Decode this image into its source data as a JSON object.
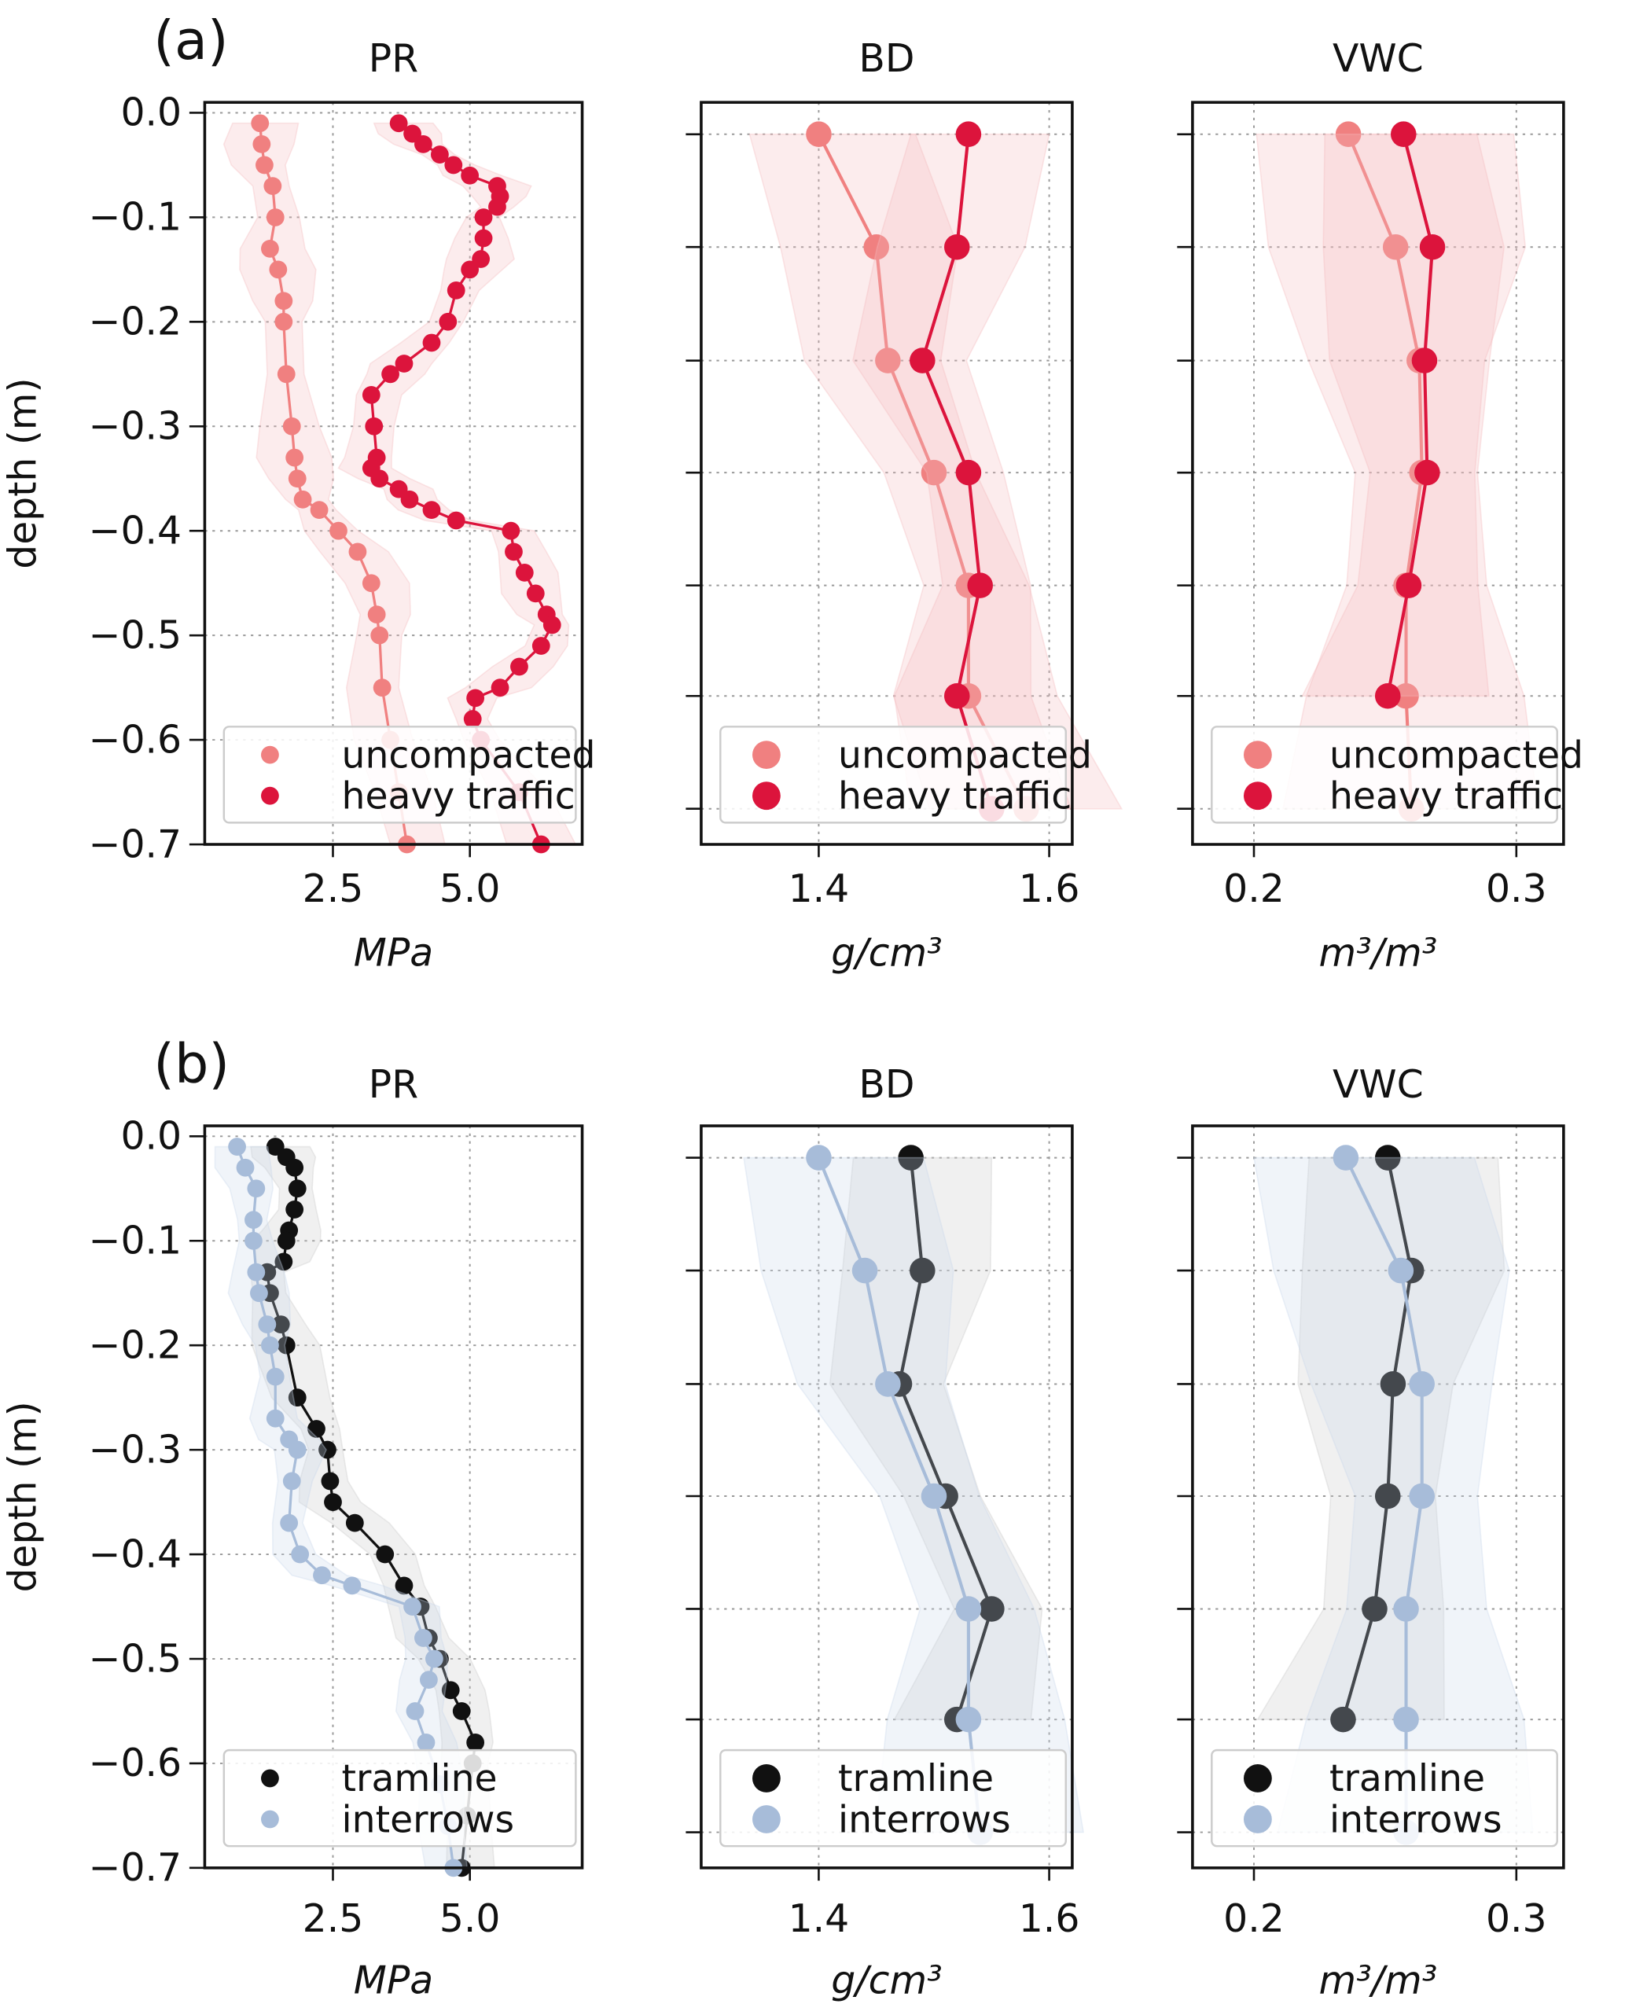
{
  "figure": {
    "rows": [
      {
        "label": "(a)",
        "legend": [
          "uncompacted",
          "heavy traffic"
        ]
      },
      {
        "label": "(b)",
        "legend": [
          "tramline",
          "interrows"
        ]
      }
    ]
  },
  "colors": {
    "uncompacted": "#F08080",
    "heavy_traffic": "#DC143C",
    "tramline": "#111111",
    "interrows": "#A7BCD9",
    "band_red": "#F4B9BE",
    "band_grey": "#C8C8C8",
    "band_blue": "#C9D6EA"
  },
  "chart_data": [
    {
      "id": "a-PR",
      "row": 0,
      "col": 0,
      "type": "line",
      "title": "PR",
      "xlabel": "MPa",
      "ylabel": "depth (m)",
      "xticks": [
        2.5,
        5.0
      ],
      "xtick_labels": [
        "2.5",
        "5.0"
      ],
      "yticks": [
        0.0,
        -0.1,
        -0.2,
        -0.3,
        -0.4,
        -0.5,
        -0.6,
        -0.7
      ],
      "ytick_labels": [
        "0.0",
        "−0.1",
        "−0.2",
        "−0.3",
        "−0.4",
        "−0.5",
        "−0.6",
        "−0.7"
      ],
      "xlim": [
        0.16,
        7.05
      ],
      "ylim": [
        -0.7,
        0.01
      ],
      "grid": true,
      "legend_loc": "lower-center",
      "series": [
        {
          "name": "uncompacted",
          "color_key": "uncompacted",
          "marker_size": "small",
          "band": 0.5,
          "depth": [
            -0.01,
            -0.03,
            -0.05,
            -0.07,
            -0.1,
            -0.13,
            -0.15,
            -0.18,
            -0.2,
            -0.25,
            -0.3,
            -0.33,
            -0.35,
            -0.37,
            -0.38,
            -0.4,
            -0.42,
            -0.45,
            -0.48,
            -0.5,
            -0.55,
            -0.6,
            -0.65,
            -0.7
          ],
          "value": [
            1.17,
            1.2,
            1.25,
            1.4,
            1.45,
            1.35,
            1.5,
            1.6,
            1.6,
            1.65,
            1.75,
            1.8,
            1.85,
            1.95,
            2.25,
            2.6,
            2.95,
            3.2,
            3.3,
            3.35,
            3.4,
            3.55,
            3.7,
            3.85
          ]
        },
        {
          "name": "heavy traffic",
          "color_key": "heavy_traffic",
          "marker_size": "small",
          "band": 0.45,
          "depth": [
            -0.01,
            -0.02,
            -0.03,
            -0.04,
            -0.05,
            -0.06,
            -0.07,
            -0.08,
            -0.09,
            -0.1,
            -0.12,
            -0.14,
            -0.15,
            -0.17,
            -0.2,
            -0.22,
            -0.24,
            -0.25,
            -0.27,
            -0.3,
            -0.33,
            -0.34,
            -0.35,
            -0.36,
            -0.37,
            -0.38,
            -0.39,
            -0.4,
            -0.42,
            -0.44,
            -0.46,
            -0.48,
            -0.49,
            -0.51,
            -0.53,
            -0.55,
            -0.56,
            -0.58,
            -0.6,
            -0.65,
            -0.7
          ],
          "value": [
            3.7,
            3.95,
            4.15,
            4.45,
            4.7,
            5.0,
            5.5,
            5.55,
            5.5,
            5.25,
            5.25,
            5.2,
            5.0,
            4.75,
            4.6,
            4.3,
            3.8,
            3.55,
            3.2,
            3.25,
            3.3,
            3.2,
            3.35,
            3.7,
            3.9,
            4.3,
            4.75,
            5.75,
            5.8,
            6.0,
            6.2,
            6.4,
            6.5,
            6.3,
            5.9,
            5.55,
            5.1,
            5.05,
            5.2,
            5.9,
            6.3
          ]
        }
      ]
    },
    {
      "id": "a-BD",
      "row": 0,
      "col": 1,
      "type": "line",
      "title": "BD",
      "xlabel": "g/cm³",
      "xticks": [
        1.4,
        1.6
      ],
      "xtick_labels": [
        "1.4",
        "1.6"
      ],
      "ylevels": 7,
      "xlim": [
        1.298,
        1.62
      ],
      "grid": true,
      "legend_loc": "lower-center",
      "series": [
        {
          "name": "uncompacted",
          "color_key": "uncompacted",
          "marker_size": "large",
          "band": 0.06,
          "value": [
            1.4,
            1.45,
            1.46,
            1.5,
            1.53,
            1.53,
            1.58
          ]
        },
        {
          "name": "heavy traffic",
          "color_key": "heavy_traffic",
          "marker_size": "large",
          "band": 0.05,
          "value": [
            1.53,
            1.52,
            1.49,
            1.53,
            1.54,
            1.52,
            1.55
          ]
        }
      ]
    },
    {
      "id": "a-VWC",
      "row": 0,
      "col": 2,
      "type": "line",
      "title": "VWC",
      "xlabel": "m³/m³",
      "xticks": [
        0.2,
        0.3
      ],
      "xtick_labels": [
        "0.2",
        "0.3"
      ],
      "ylevels": 7,
      "xlim": [
        0.1766,
        0.318
      ],
      "grid": true,
      "legend_loc": "lower-center",
      "series": [
        {
          "name": "uncompacted",
          "color_key": "uncompacted",
          "marker_size": "large",
          "band": 0.035,
          "value": [
            0.236,
            0.254,
            0.263,
            0.264,
            0.258,
            0.258,
            0.26
          ]
        },
        {
          "name": "heavy traffic",
          "color_key": "heavy_traffic",
          "marker_size": "large",
          "band": 0.03,
          "value": [
            0.257,
            0.268,
            0.265,
            0.266,
            0.259,
            0.251
          ]
        }
      ]
    },
    {
      "id": "b-PR",
      "row": 1,
      "col": 0,
      "type": "line",
      "title": "PR",
      "xlabel": "MPa",
      "ylabel": "depth (m)",
      "xticks": [
        2.5,
        5.0
      ],
      "xtick_labels": [
        "2.5",
        "5.0"
      ],
      "yticks": [
        0.0,
        -0.1,
        -0.2,
        -0.3,
        -0.4,
        -0.5,
        -0.6,
        -0.7
      ],
      "ytick_labels": [
        "0.0",
        "−0.1",
        "−0.2",
        "−0.3",
        "−0.4",
        "−0.5",
        "−0.6",
        "−0.7"
      ],
      "xlim": [
        0.16,
        7.05
      ],
      "ylim": [
        -0.7,
        0.01
      ],
      "grid": true,
      "legend_loc": "lower-center",
      "series": [
        {
          "name": "tramline",
          "color_key": "tramline",
          "marker_size": "small",
          "band": 0.45,
          "depth": [
            -0.01,
            -0.02,
            -0.03,
            -0.05,
            -0.07,
            -0.09,
            -0.1,
            -0.12,
            -0.13,
            -0.15,
            -0.18,
            -0.2,
            -0.25,
            -0.28,
            -0.3,
            -0.33,
            -0.35,
            -0.37,
            -0.4,
            -0.43,
            -0.45,
            -0.48,
            -0.5,
            -0.53,
            -0.55,
            -0.58,
            -0.6,
            -0.65,
            -0.7
          ],
          "value": [
            1.45,
            1.65,
            1.8,
            1.85,
            1.8,
            1.7,
            1.65,
            1.6,
            1.3,
            1.35,
            1.55,
            1.65,
            1.85,
            2.2,
            2.4,
            2.45,
            2.5,
            2.9,
            3.45,
            3.8,
            4.1,
            4.25,
            4.45,
            4.65,
            4.85,
            5.1,
            5.05,
            4.95,
            4.85
          ]
        },
        {
          "name": "interrows",
          "color_key": "interrows",
          "marker_size": "small",
          "band": 0.4,
          "depth": [
            -0.01,
            -0.03,
            -0.05,
            -0.08,
            -0.1,
            -0.13,
            -0.15,
            -0.18,
            -0.2,
            -0.23,
            -0.27,
            -0.29,
            -0.3,
            -0.33,
            -0.37,
            -0.4,
            -0.42,
            -0.43,
            -0.45,
            -0.48,
            -0.5,
            -0.52,
            -0.55,
            -0.58,
            -0.62,
            -0.66,
            -0.7
          ],
          "value": [
            0.75,
            0.9,
            1.1,
            1.05,
            1.05,
            1.1,
            1.15,
            1.3,
            1.35,
            1.45,
            1.45,
            1.7,
            1.85,
            1.75,
            1.7,
            1.9,
            2.3,
            2.85,
            3.95,
            4.15,
            4.35,
            4.25,
            4.0,
            4.2,
            4.45,
            4.6,
            4.7
          ]
        }
      ]
    },
    {
      "id": "b-BD",
      "row": 1,
      "col": 1,
      "type": "line",
      "title": "BD",
      "xlabel": "g/cm³",
      "xticks": [
        1.4,
        1.6
      ],
      "xtick_labels": [
        "1.4",
        "1.6"
      ],
      "ylevels": 7,
      "xlim": [
        1.298,
        1.62
      ],
      "grid": true,
      "legend_loc": "lower-center",
      "series": [
        {
          "name": "tramline",
          "color_key": "tramline",
          "marker_size": "large",
          "band": 0.05,
          "value": [
            1.48,
            1.49,
            1.47,
            1.51,
            1.55,
            1.52
          ]
        },
        {
          "name": "interrows",
          "color_key": "interrows",
          "marker_size": "large",
          "band": 0.065,
          "value": [
            1.4,
            1.44,
            1.46,
            1.5,
            1.53,
            1.53,
            1.54
          ]
        }
      ]
    },
    {
      "id": "b-VWC",
      "row": 1,
      "col": 2,
      "type": "line",
      "title": "VWC",
      "xlabel": "m³/m³",
      "xticks": [
        0.2,
        0.3
      ],
      "xtick_labels": [
        "0.2",
        "0.3"
      ],
      "ylevels": 7,
      "xlim": [
        0.1766,
        0.318
      ],
      "grid": true,
      "legend_loc": "lower-center",
      "series": [
        {
          "name": "tramline",
          "color_key": "tramline",
          "marker_size": "large",
          "band": 0.03,
          "value": [
            0.251,
            0.26,
            0.253,
            0.251,
            0.246,
            0.234
          ]
        },
        {
          "name": "interrows",
          "color_key": "interrows",
          "marker_size": "large",
          "band": 0.035,
          "value": [
            0.235,
            0.256,
            0.264,
            0.264,
            0.258,
            0.258,
            0.258
          ]
        }
      ]
    }
  ]
}
